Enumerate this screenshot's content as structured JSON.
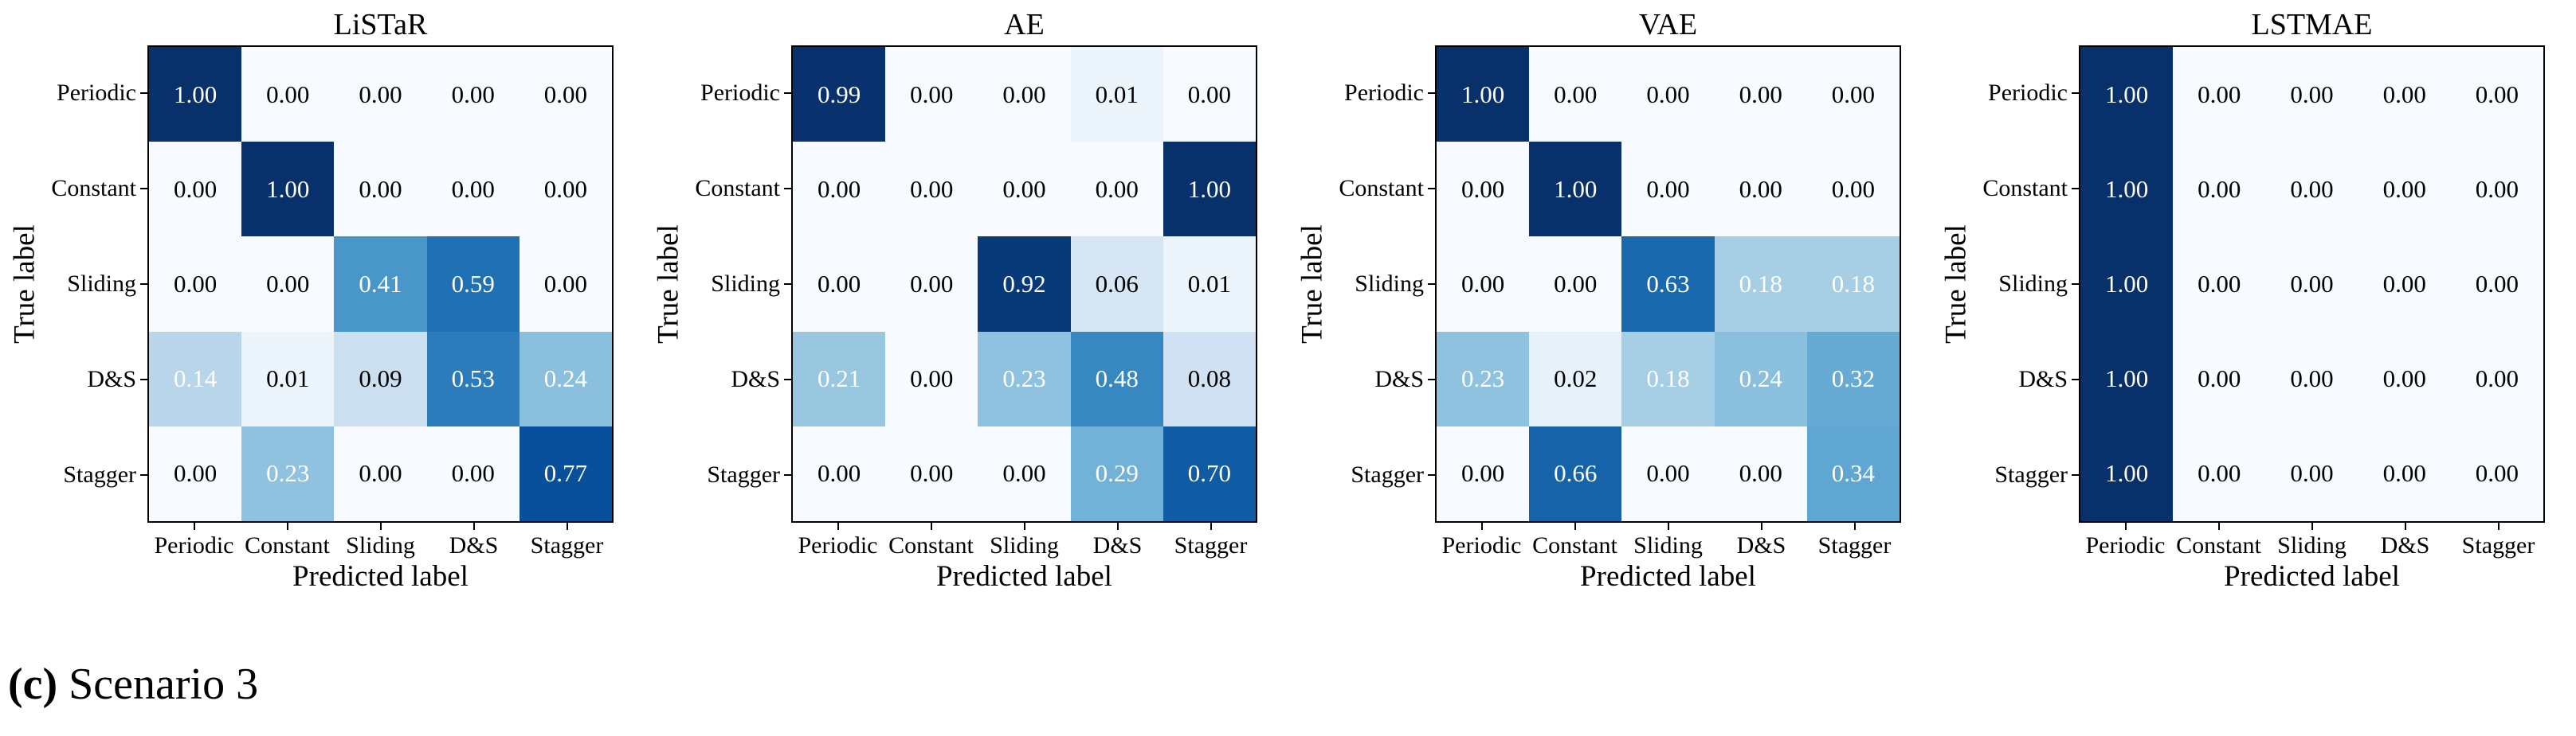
{
  "figure": {
    "caption_marker": "(c)",
    "caption_text": "Scenario 3"
  },
  "shared": {
    "x_axis_label": "Predicted label",
    "y_axis_label": "True label",
    "classes": [
      "Periodic",
      "Constant",
      "Sliding",
      "D&S",
      "Stagger"
    ]
  },
  "colormap": {
    "name": "Blues",
    "low": "#f7fbff",
    "high": "#08306b",
    "cell_text_light": "#ffffff",
    "cell_text_dark": "#000000",
    "axis_color": "#000000"
  },
  "chart_data": [
    {
      "type": "heatmap",
      "title": "LiSTaR",
      "xlabel": "Predicted label",
      "ylabel": "True label",
      "x_categories": [
        "Periodic",
        "Constant",
        "Sliding",
        "D&S",
        "Stagger"
      ],
      "y_categories": [
        "Periodic",
        "Constant",
        "Sliding",
        "D&S",
        "Stagger"
      ],
      "value_range": [
        0,
        1
      ],
      "values": [
        [
          1.0,
          0.0,
          0.0,
          0.0,
          0.0
        ],
        [
          0.0,
          1.0,
          0.0,
          0.0,
          0.0
        ],
        [
          0.0,
          0.0,
          0.41,
          0.59,
          0.0
        ],
        [
          0.14,
          0.01,
          0.09,
          0.53,
          0.24
        ],
        [
          0.0,
          0.23,
          0.0,
          0.0,
          0.77
        ]
      ]
    },
    {
      "type": "heatmap",
      "title": "AE",
      "xlabel": "Predicted label",
      "ylabel": "True label",
      "x_categories": [
        "Periodic",
        "Constant",
        "Sliding",
        "D&S",
        "Stagger"
      ],
      "y_categories": [
        "Periodic",
        "Constant",
        "Sliding",
        "D&S",
        "Stagger"
      ],
      "value_range": [
        0,
        1
      ],
      "values": [
        [
          0.99,
          0.0,
          0.0,
          0.01,
          0.0
        ],
        [
          0.0,
          0.0,
          0.0,
          0.0,
          1.0
        ],
        [
          0.0,
          0.0,
          0.92,
          0.06,
          0.01
        ],
        [
          0.21,
          0.0,
          0.23,
          0.48,
          0.08
        ],
        [
          0.0,
          0.0,
          0.0,
          0.29,
          0.7
        ]
      ]
    },
    {
      "type": "heatmap",
      "title": "VAE",
      "xlabel": "Predicted label",
      "ylabel": "True label",
      "x_categories": [
        "Periodic",
        "Constant",
        "Sliding",
        "D&S",
        "Stagger"
      ],
      "y_categories": [
        "Periodic",
        "Constant",
        "Sliding",
        "D&S",
        "Stagger"
      ],
      "value_range": [
        0,
        1
      ],
      "values": [
        [
          1.0,
          0.0,
          0.0,
          0.0,
          0.0
        ],
        [
          0.0,
          1.0,
          0.0,
          0.0,
          0.0
        ],
        [
          0.0,
          0.0,
          0.63,
          0.18,
          0.18
        ],
        [
          0.23,
          0.02,
          0.18,
          0.24,
          0.32
        ],
        [
          0.0,
          0.66,
          0.0,
          0.0,
          0.34
        ]
      ]
    },
    {
      "type": "heatmap",
      "title": "LSTMAE",
      "xlabel": "Predicted label",
      "ylabel": "True label",
      "x_categories": [
        "Periodic",
        "Constant",
        "Sliding",
        "D&S",
        "Stagger"
      ],
      "y_categories": [
        "Periodic",
        "Constant",
        "Sliding",
        "D&S",
        "Stagger"
      ],
      "value_range": [
        0,
        1
      ],
      "values": [
        [
          1.0,
          0.0,
          0.0,
          0.0,
          0.0
        ],
        [
          1.0,
          0.0,
          0.0,
          0.0,
          0.0
        ],
        [
          1.0,
          0.0,
          0.0,
          0.0,
          0.0
        ],
        [
          1.0,
          0.0,
          0.0,
          0.0,
          0.0
        ],
        [
          1.0,
          0.0,
          0.0,
          0.0,
          0.0
        ]
      ]
    }
  ]
}
